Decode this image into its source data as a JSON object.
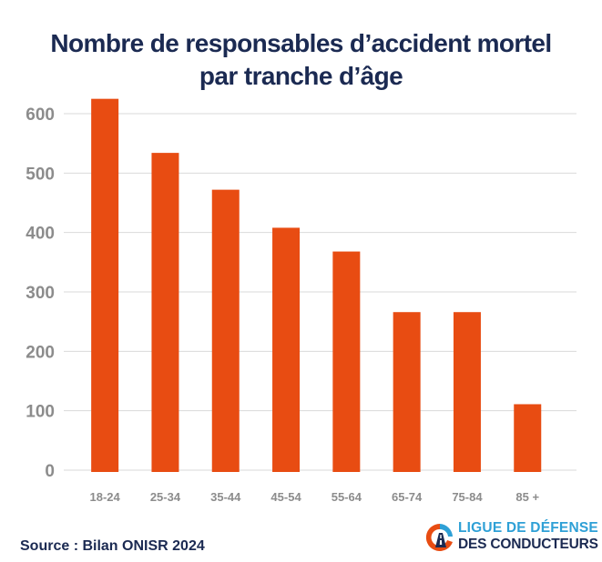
{
  "title_line1": "Nombre de responsables d’accident mortel",
  "title_line2": "par tranche d’âge",
  "source": "Source : Bilan ONISR 2024",
  "logo": {
    "line1": "LIGUE DE DÉFENSE",
    "line2": "DES CONDUCTEURS"
  },
  "colors": {
    "bar": "#e84c12",
    "title": "#1b2a52",
    "tick": "#8c8c8c",
    "grid": "#d9d9d9",
    "logo_blue": "#2ea0d6"
  },
  "chart_data": {
    "type": "bar",
    "categories": [
      "18-24",
      "25-34",
      "35-44",
      "45-54",
      "55-64",
      "65-74",
      "75-84",
      "85 +"
    ],
    "values": [
      625,
      534,
      472,
      408,
      368,
      266,
      266,
      111
    ],
    "title": "Nombre de responsables d’accident mortel par tranche d’âge",
    "xlabel": "",
    "ylabel": "",
    "ylim": [
      0,
      600
    ],
    "yticks": [
      0,
      100,
      200,
      300,
      400,
      500,
      600
    ],
    "grid": true,
    "legend": "none"
  }
}
